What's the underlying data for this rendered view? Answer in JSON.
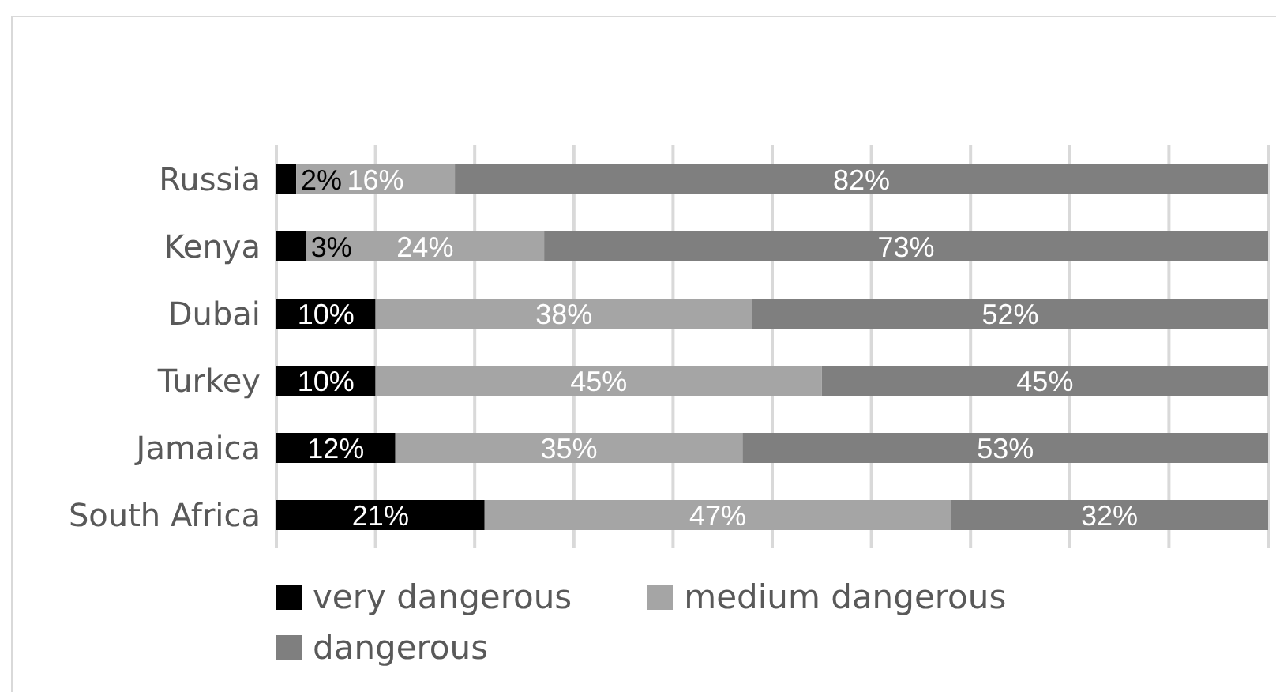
{
  "chart_data": {
    "type": "bar",
    "orientation": "horizontal",
    "stacked": true,
    "categories": [
      "Russia",
      "Kenya",
      "Dubai",
      "Turkey",
      "Jamaica",
      "South Africa"
    ],
    "series": [
      {
        "name": "very dangerous",
        "color": "#000000",
        "values": [
          2,
          3,
          10,
          10,
          12,
          21
        ],
        "value_labels": [
          "2%",
          "3%",
          "10%",
          "10%",
          "12%",
          "21%"
        ]
      },
      {
        "name": "medium dangerous",
        "color": "#a5a5a5",
        "values": [
          16,
          24,
          38,
          45,
          35,
          47
        ],
        "value_labels": [
          "16%",
          "24%",
          "38%",
          "45%",
          "35%",
          "47%"
        ]
      },
      {
        "name": "dangerous",
        "color": "#7f7f7f",
        "values": [
          82,
          73,
          52,
          45,
          53,
          32
        ],
        "value_labels": [
          "82%",
          "73%",
          "52%",
          "45%",
          "53%",
          "32%"
        ]
      }
    ],
    "xlim": [
      0,
      100
    ],
    "xticks": [
      {
        "value": 0,
        "label": null
      },
      {
        "value": 10,
        "label": null
      },
      {
        "value": 20,
        "label": null
      },
      {
        "value": 30,
        "label": null
      },
      {
        "value": 40,
        "label": null
      },
      {
        "value": 50,
        "label": null
      },
      {
        "value": 60,
        "label": null
      },
      {
        "value": 70,
        "label": null
      },
      {
        "value": 80,
        "label": null
      },
      {
        "value": 90,
        "label": null
      },
      {
        "value": 100,
        "label": null
      }
    ],
    "grid": "x",
    "legend": "bottom",
    "tick_labels": "y"
  }
}
